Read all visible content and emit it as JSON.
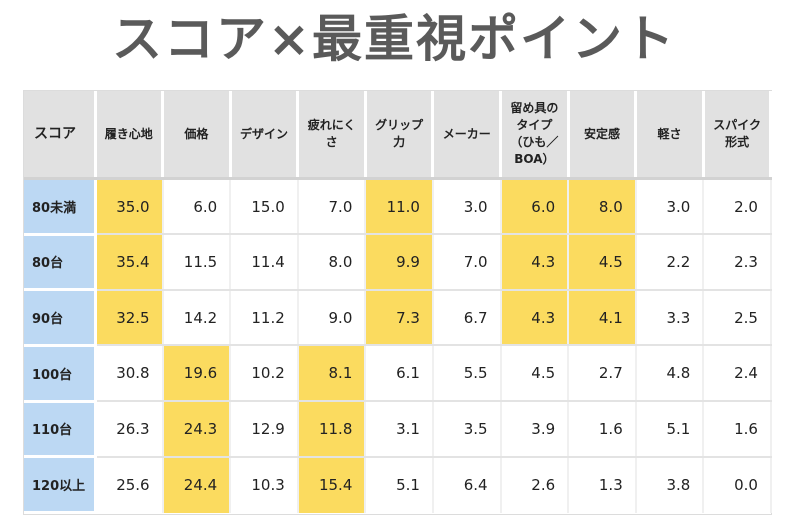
{
  "title": "スコア×最重視ポイント",
  "colors": {
    "highlight": "#fbdb5f",
    "row_header": "#bcd8f3",
    "col_header": "#e1e1e1",
    "title": "#5a5a5a"
  },
  "chart_data": {
    "type": "table",
    "corner_label": "スコア",
    "columns": [
      "履き心地",
      "価格",
      "デザイン",
      "疲れにくさ",
      "グリップ力",
      "メーカー",
      "留め具のタイプ（ひも／BOA）",
      "安定感",
      "軽さ",
      "スパイク形式"
    ],
    "column_display": [
      [
        "履き心地"
      ],
      [
        "価格"
      ],
      [
        "デザイン"
      ],
      [
        "疲れにく",
        "さ"
      ],
      [
        "グリップ",
        "力"
      ],
      [
        "メーカー"
      ],
      [
        "留め具の",
        "タイプ",
        "（ひも／",
        "BOA）"
      ],
      [
        "安定感"
      ],
      [
        "軽さ"
      ],
      [
        "スパイク",
        "形式"
      ]
    ],
    "rows": [
      {
        "label": "80未満",
        "values": [
          35.0,
          6.0,
          15.0,
          7.0,
          11.0,
          3.0,
          6.0,
          8.0,
          3.0,
          2.0
        ],
        "highlight": [
          true,
          false,
          false,
          false,
          true,
          false,
          true,
          true,
          false,
          false
        ]
      },
      {
        "label": "80台",
        "values": [
          35.4,
          11.5,
          11.4,
          8.0,
          9.9,
          7.0,
          4.3,
          4.5,
          2.2,
          2.3
        ],
        "highlight": [
          true,
          false,
          false,
          false,
          true,
          false,
          true,
          true,
          false,
          false
        ]
      },
      {
        "label": "90台",
        "values": [
          32.5,
          14.2,
          11.2,
          9.0,
          7.3,
          6.7,
          4.3,
          4.1,
          3.3,
          2.5
        ],
        "highlight": [
          true,
          false,
          false,
          false,
          true,
          false,
          true,
          true,
          false,
          false
        ]
      },
      {
        "label": "100台",
        "values": [
          30.8,
          19.6,
          10.2,
          8.1,
          6.1,
          5.5,
          4.5,
          2.7,
          4.8,
          2.4
        ],
        "highlight": [
          false,
          true,
          false,
          true,
          false,
          false,
          false,
          false,
          false,
          false
        ]
      },
      {
        "label": "110台",
        "values": [
          26.3,
          24.3,
          12.9,
          11.8,
          3.1,
          3.5,
          3.9,
          1.6,
          5.1,
          1.6
        ],
        "highlight": [
          false,
          true,
          false,
          true,
          false,
          false,
          false,
          false,
          false,
          false
        ]
      },
      {
        "label": "120以上",
        "values": [
          25.6,
          24.4,
          10.3,
          15.4,
          5.1,
          6.4,
          2.6,
          1.3,
          3.8,
          0.0
        ],
        "highlight": [
          false,
          true,
          false,
          true,
          false,
          false,
          false,
          false,
          false,
          false
        ]
      }
    ]
  }
}
